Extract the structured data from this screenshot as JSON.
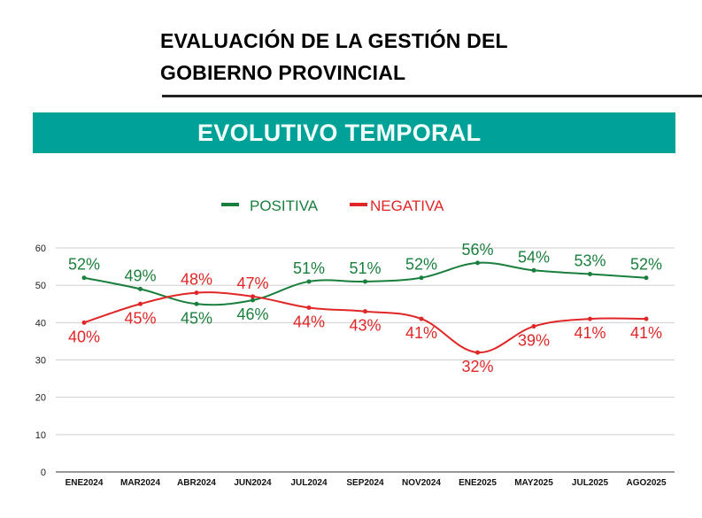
{
  "header": {
    "title_line1": "EVALUACIÓN DE LA GESTIÓN DEL",
    "title_line2": "GOBIERNO PROVINCIAL",
    "banner": "EVOLUTIVO TEMPORAL",
    "banner_color": "#00a297"
  },
  "chart_data": {
    "type": "line",
    "title": "",
    "xlabel": "",
    "ylabel": "",
    "ylim": [
      0,
      60
    ],
    "yticks": [
      0,
      10,
      20,
      30,
      40,
      50,
      60
    ],
    "grid": true,
    "smooth": true,
    "legend_position": "top-center",
    "categories": [
      "ENE2024",
      "MAR2024",
      "ABR2024",
      "JUN2024",
      "JUL2024",
      "SEP2024",
      "NOV2024",
      "ENE2025",
      "MAY2025",
      "JUL2025",
      "AGO2025"
    ],
    "series": [
      {
        "name": "POSITIVA",
        "color": "#1a7f3c",
        "values": [
          52,
          49,
          45,
          46,
          51,
          51,
          52,
          56,
          54,
          53,
          52
        ],
        "labels": [
          "52%",
          "49%",
          "45%",
          "46%",
          "51%",
          "51%",
          "52%",
          "56%",
          "54%",
          "53%",
          "52%"
        ]
      },
      {
        "name": "NEGATIVA",
        "color": "#e02626",
        "values": [
          40,
          45,
          48,
          47,
          44,
          43,
          41,
          32,
          39,
          41,
          41
        ],
        "labels": [
          "40%",
          "45%",
          "48%",
          "47%",
          "44%",
          "43%",
          "41%",
          "32%",
          "39%",
          "41%",
          "41%"
        ]
      }
    ]
  }
}
